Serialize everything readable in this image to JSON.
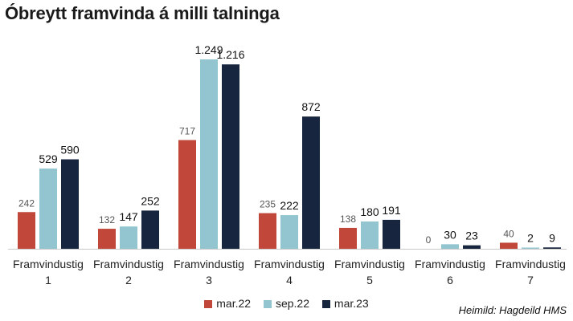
{
  "chart_data": {
    "type": "bar",
    "title": "Óbreytt framvinda á milli talninga",
    "categories": [
      [
        "Framvindustig",
        "1"
      ],
      [
        "Framvindustig",
        "2"
      ],
      [
        "Framvindustig",
        "3"
      ],
      [
        "Framvindustig",
        "4"
      ],
      [
        "Framvindustig",
        "5"
      ],
      [
        "Framvindustig",
        "6"
      ],
      [
        "Framvindustig",
        "7"
      ]
    ],
    "series": [
      {
        "name": "mar.22",
        "color": "#c0473a",
        "values": [
          242,
          132,
          717,
          235,
          138,
          0,
          40
        ]
      },
      {
        "name": "sep.22",
        "color": "#92c5cf",
        "values": [
          529,
          147,
          1249,
          222,
          180,
          30,
          2
        ]
      },
      {
        "name": "mar.23",
        "color": "#18253f",
        "values": [
          590,
          252,
          1216,
          872,
          191,
          23,
          9
        ]
      }
    ],
    "value_labels": [
      [
        "242",
        "529",
        "590"
      ],
      [
        "132",
        "147",
        "252"
      ],
      [
        "717",
        "1.249",
        "1.216"
      ],
      [
        "235",
        "222",
        "872"
      ],
      [
        "138",
        "180",
        "191"
      ],
      [
        "0",
        "30",
        "23"
      ],
      [
        "40",
        "2",
        "9"
      ]
    ],
    "ylim": [
      0,
      1249
    ],
    "grid": false,
    "legend_position": "bottom",
    "source": "Heimild: Hagdeild HMS"
  }
}
